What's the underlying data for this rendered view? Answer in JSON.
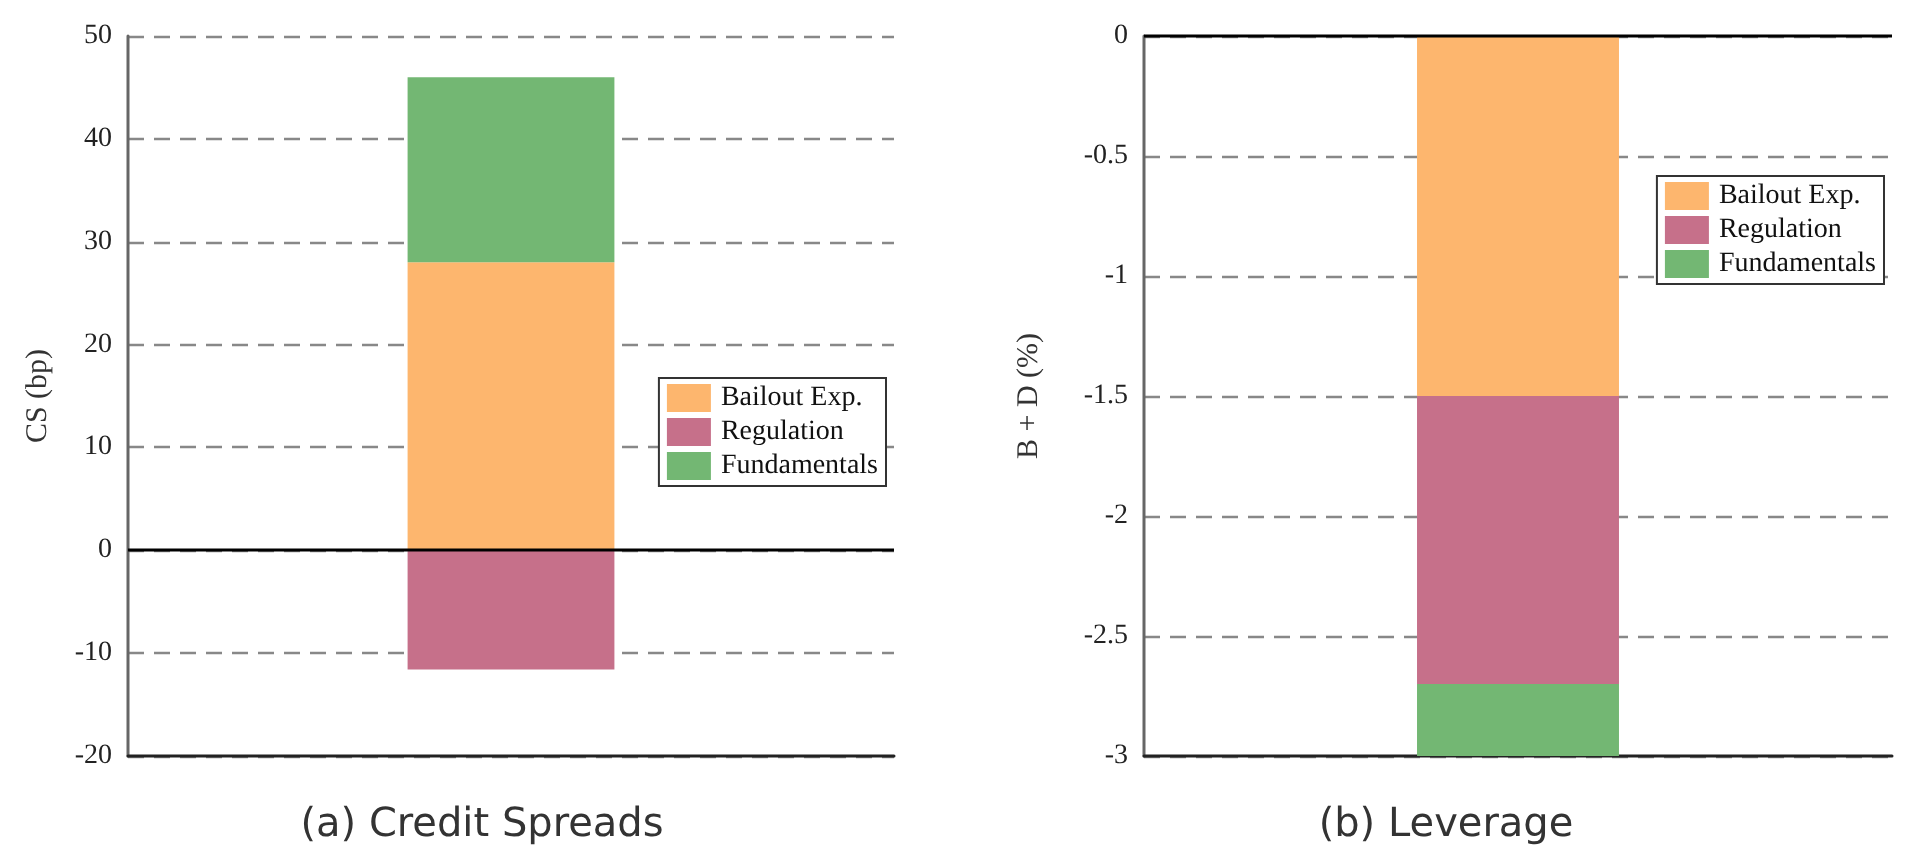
{
  "chart_data": [
    {
      "type": "bar",
      "title": "(a) Credit Spreads",
      "ylabel": "CS (bp)",
      "categories": [
        null
      ],
      "stacked": true,
      "ylim": [
        -20,
        50
      ],
      "yticks": [
        -20,
        -10,
        0,
        10,
        20,
        30,
        40,
        50
      ],
      "grid": "y",
      "legend": "right",
      "tick_labels": "y",
      "ref_lines": [
        {
          "axis": "y",
          "value": 0,
          "color": "#000000"
        }
      ],
      "series": [
        {
          "name": "Bailout Exp.",
          "color": "#fdb66e",
          "values": [
            28
          ]
        },
        {
          "name": "Regulation",
          "color": "#c6708a",
          "values": [
            -11.6
          ]
        },
        {
          "name": "Fundamentals",
          "color": "#73b773",
          "values": [
            18
          ]
        }
      ]
    },
    {
      "type": "bar",
      "title": "(b) Leverage",
      "ylabel": "B + D (%)",
      "categories": [
        null
      ],
      "stacked": true,
      "ylim": [
        -3,
        0
      ],
      "yticks": [
        -3,
        -2.5,
        -2,
        -1.5,
        -1,
        -0.5,
        0
      ],
      "grid": "y",
      "legend": "top right",
      "tick_labels": "y",
      "ref_lines": [
        {
          "axis": "y",
          "value": 0,
          "color": "#000000"
        }
      ],
      "series": [
        {
          "name": "Bailout Exp.",
          "color": "#fdb66e",
          "values": [
            -1.5
          ]
        },
        {
          "name": "Regulation",
          "color": "#c6708a",
          "values": [
            -1.2
          ]
        },
        {
          "name": "Fundamentals",
          "color": "#73b773",
          "values": [
            -0.3
          ]
        }
      ]
    }
  ]
}
